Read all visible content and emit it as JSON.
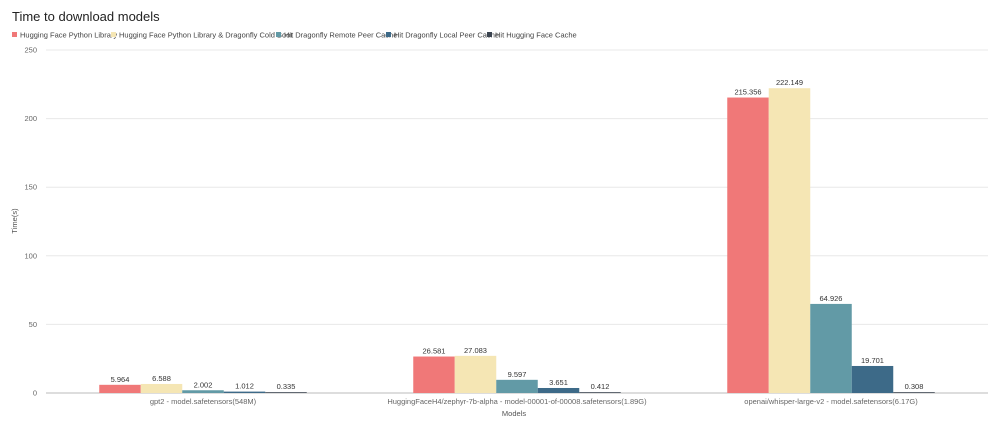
{
  "chart_data": {
    "type": "bar",
    "title": "Time to download models",
    "xlabel": "Models",
    "ylabel": "Time(s)",
    "ylim": [
      0,
      250
    ],
    "yticks": [
      0,
      50,
      100,
      150,
      200,
      250
    ],
    "grid": true,
    "legend_position": "top-left",
    "categories": [
      "gpt2 - model.safetensors(548M)",
      "HuggingFaceH4/zephyr-7b-alpha - model-00001-of-00008.safetensors(1.89G)",
      "openai/whisper-large-v2 - model.safetensors(6.17G)"
    ],
    "series": [
      {
        "name": "Hugging Face Python Library",
        "color": "#f07878",
        "values": [
          5.964,
          26.581,
          215.356
        ],
        "labels": [
          "5.964",
          "26.581",
          "215.356"
        ]
      },
      {
        "name": "Hugging Face Python Library & Dragonfly Cold Boot",
        "color": "#f5e6b4",
        "values": [
          6.588,
          27.083,
          222.149
        ],
        "labels": [
          "6.588",
          "27.083",
          "222.149"
        ]
      },
      {
        "name": "Hit Dragonfly Remote Peer Cache",
        "color": "#629aa6",
        "values": [
          2.002,
          9.597,
          64.926
        ],
        "labels": [
          "2.002",
          "9.597",
          "64.926"
        ]
      },
      {
        "name": "Hit Dragonfly Local Peer Cache",
        "color": "#3d6a88",
        "values": [
          1.012,
          3.651,
          19.701
        ],
        "labels": [
          "1.012",
          "3.651",
          "19.701"
        ]
      },
      {
        "name": "Hit Hugging Face Cache",
        "color": "#3b4450",
        "values": [
          0.335,
          0.412,
          0.308
        ],
        "labels": [
          "0.335",
          "0.412",
          "0.308"
        ]
      }
    ]
  }
}
